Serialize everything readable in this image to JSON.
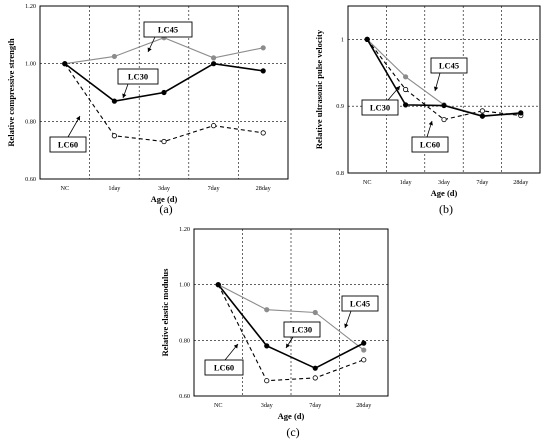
{
  "chart_data": [
    {
      "id": "a",
      "type": "line",
      "caption": "(a)",
      "xlabel": "Age (d)",
      "ylabel": "Relative compressive strength",
      "categories": [
        "NC",
        "1day",
        "3day",
        "7day",
        "28day"
      ],
      "ylim": [
        0.6,
        1.2
      ],
      "yticks": [
        "0.60",
        "0.80",
        "1.00",
        "1.20"
      ],
      "grid": true,
      "series": [
        {
          "name": "LC30",
          "values": [
            1.0,
            0.87,
            0.9,
            1.0,
            0.975
          ],
          "color": "#000000",
          "dash": false,
          "marker": "filled"
        },
        {
          "name": "LC45",
          "values": [
            1.0,
            1.025,
            1.09,
            1.02,
            1.055
          ],
          "color": "#8c8c8c",
          "dash": false,
          "marker": "filled"
        },
        {
          "name": "LC60",
          "values": [
            1.0,
            0.75,
            0.73,
            0.785,
            0.76
          ],
          "color": "#000000",
          "dash": true,
          "marker": "open"
        }
      ]
    },
    {
      "id": "b",
      "type": "line",
      "caption": "(b)",
      "xlabel": "Age (d)",
      "ylabel": "Relative ultrasonic pulse velocity",
      "categories": [
        "NC",
        "1day",
        "3day",
        "7day",
        "28day"
      ],
      "ylim": [
        0.8,
        1.05
      ],
      "yticks": [
        "0.8",
        "0.9",
        "1"
      ],
      "grid": true,
      "series": [
        {
          "name": "LC30",
          "values": [
            1.0,
            0.902,
            0.901,
            0.885,
            0.89
          ],
          "color": "#000000",
          "dash": false,
          "marker": "filled"
        },
        {
          "name": "LC45",
          "values": [
            1.0,
            0.944,
            0.902,
            0.886,
            0.888
          ],
          "color": "#8c8c8c",
          "dash": false,
          "marker": "filled"
        },
        {
          "name": "LC60",
          "values": [
            1.0,
            0.925,
            0.88,
            0.893,
            0.886
          ],
          "color": "#000000",
          "dash": true,
          "marker": "open"
        }
      ]
    },
    {
      "id": "c",
      "type": "line",
      "caption": "(c)",
      "xlabel": "Age (d)",
      "ylabel": "Relative elastic modulus",
      "categories": [
        "NC",
        "3day",
        "7day",
        "28day"
      ],
      "ylim": [
        0.6,
        1.2
      ],
      "yticks": [
        "0.60",
        "0.80",
        "1.00",
        "1.20"
      ],
      "grid": true,
      "series": [
        {
          "name": "LC30",
          "values": [
            1.0,
            0.78,
            0.7,
            0.79
          ],
          "color": "#000000",
          "dash": false,
          "marker": "filled"
        },
        {
          "name": "LC45",
          "values": [
            1.0,
            0.91,
            0.9,
            0.765
          ],
          "color": "#8c8c8c",
          "dash": false,
          "marker": "filled"
        },
        {
          "name": "LC60",
          "values": [
            1.0,
            0.655,
            0.665,
            0.73
          ],
          "color": "#000000",
          "dash": true,
          "marker": "open"
        }
      ]
    }
  ]
}
